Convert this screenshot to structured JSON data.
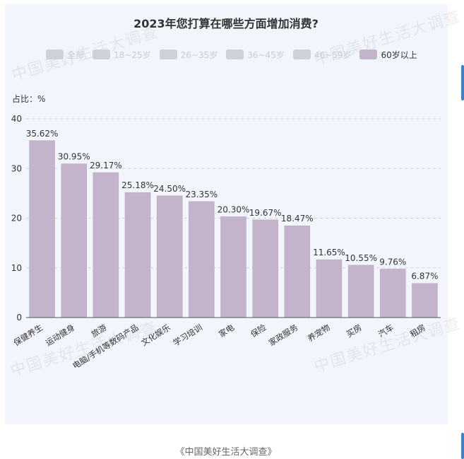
{
  "page": {
    "caption": "《中国美好生活大调查》",
    "watermark_text": "中国美好生活大调查"
  },
  "colors": {
    "bar": "#c3b3cb",
    "bar_stroke": "#b6a5bf",
    "panel": "#f2f5fb",
    "grid": "#cfd4dd",
    "legend_active": "#c3b3cb",
    "legend_inactive": "#cfd1d6",
    "accent_edge": "#3d7fd4"
  },
  "legend": {
    "items": [
      {
        "label": "全部",
        "active": false
      },
      {
        "label": "18~25岁",
        "active": false
      },
      {
        "label": "26~35岁",
        "active": false
      },
      {
        "label": "36~45岁",
        "active": false
      },
      {
        "label": "46~59岁",
        "active": false
      },
      {
        "label": "60岁以上",
        "active": true
      }
    ]
  },
  "chart_data": {
    "type": "bar",
    "title": "2023年您打算在哪些方面增加消费?",
    "ylabel": "占比：%",
    "xlabel": "",
    "ylim": [
      0,
      40
    ],
    "yticks": [
      0,
      10,
      20,
      30,
      40
    ],
    "grid": true,
    "legend_position": "top",
    "series": [
      {
        "name": "60岁以上",
        "values": [
          35.62,
          30.95,
          29.17,
          25.18,
          24.5,
          23.35,
          20.3,
          19.67,
          18.47,
          11.65,
          10.55,
          9.76,
          6.87
        ]
      }
    ],
    "categories": [
      "保健养生",
      "运动健身",
      "旅游",
      "电脑/手机等数码产品",
      "文化娱乐",
      "学习培训",
      "家电",
      "保险",
      "家政服务",
      "养宠物",
      "买房",
      "汽车",
      "租房"
    ],
    "data_labels": [
      "35.62%",
      "30.95%",
      "29.17%",
      "25.18%",
      "24.50%",
      "23.35%",
      "20.30%",
      "19.67%",
      "18.47%",
      "11.65%",
      "10.55%",
      "9.76%",
      "6.87%"
    ]
  }
}
